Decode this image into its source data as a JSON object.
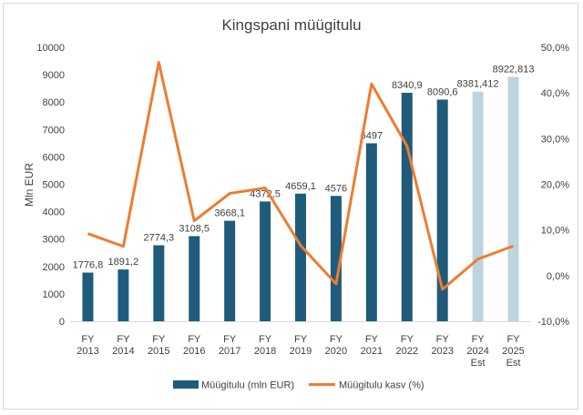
{
  "chart_data": {
    "type": "bar+line",
    "title": "Kingspani müügitulu",
    "ylabel": "Mln EUR",
    "y2label": "",
    "ylim": [
      0,
      10000
    ],
    "y_ticks": [
      "0",
      "1000",
      "2000",
      "3000",
      "4000",
      "5000",
      "6000",
      "7000",
      "8000",
      "9000",
      "10000"
    ],
    "y2lim": [
      -10,
      50
    ],
    "y2_ticks": [
      "-10,0%",
      "0,0%",
      "10,0%",
      "20,0%",
      "30,0%",
      "40,0%",
      "50,0%"
    ],
    "categories": [
      [
        "FY",
        "2013"
      ],
      [
        "FY",
        "2014"
      ],
      [
        "FY",
        "2015"
      ],
      [
        "FY",
        "2016"
      ],
      [
        "FY",
        "2017"
      ],
      [
        "FY",
        "2018"
      ],
      [
        "FY",
        "2019"
      ],
      [
        "FY",
        "2020"
      ],
      [
        "FY",
        "2021"
      ],
      [
        "FY",
        "2022"
      ],
      [
        "FY",
        "2023"
      ],
      [
        "FY",
        "2024",
        "Est"
      ],
      [
        "FY",
        "2025",
        "Est"
      ]
    ],
    "series": [
      {
        "name": "Müügitulu (mln EUR)",
        "kind": "bar",
        "values": [
          1776.8,
          1891.2,
          2774.3,
          3108.5,
          3668.1,
          4372.5,
          4659.1,
          4576,
          6497,
          8340.9,
          8090.6,
          8381.412,
          8922.813
        ],
        "labels": [
          "1776,8",
          "1891,2",
          "2774,3",
          "3108,5",
          "3668,1",
          "4372,5",
          "4659,1",
          "4576",
          "6497",
          "8340,9",
          "8090,6",
          "8381,412",
          "8922,813"
        ],
        "estimated": [
          false,
          false,
          false,
          false,
          false,
          false,
          false,
          false,
          false,
          false,
          false,
          true,
          true
        ],
        "color": "#1f5b7a",
        "est_color": "#bdd4de"
      },
      {
        "name": "Müügitulu kasv (%)",
        "kind": "line",
        "axis": "right",
        "values": [
          9.2,
          6.4,
          46.7,
          12.0,
          18.0,
          19.2,
          6.6,
          -1.8,
          42.0,
          28.4,
          -3.0,
          3.6,
          6.5
        ],
        "color": "#ed7d31"
      }
    ],
    "grid": false,
    "legend": "bottom"
  }
}
